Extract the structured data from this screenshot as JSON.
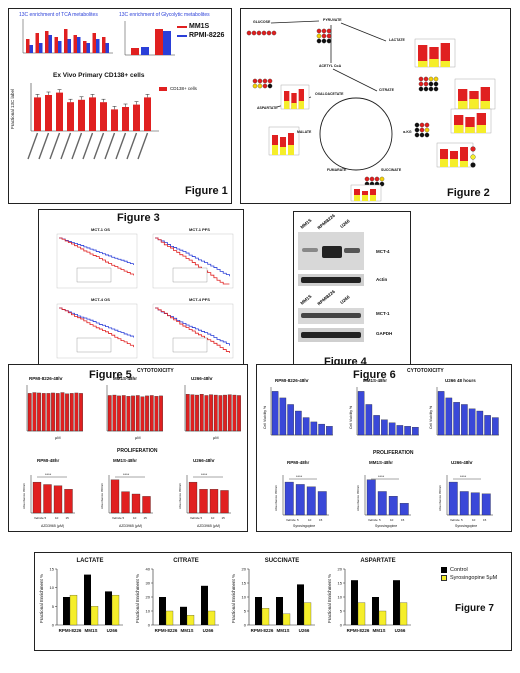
{
  "figure1": {
    "title": "Figure 1",
    "tca_title": "13C enrichment of TCA metabolites",
    "glyco_title": "13C enrichment of Glycolytic metabolites",
    "legend": [
      "MM1S",
      "RPMI-8226"
    ],
    "exvivo_title": "Ex Vivo Primary CD138+ cells",
    "exvivo_legend": "CD138+ cells",
    "ylabel": "Fractional 13C label",
    "colors": {
      "mm1s": "#e02020",
      "rpmi": "#2a3fd8"
    }
  },
  "figure2": {
    "title": "Figure 2",
    "nodes": [
      "GLUCOSE",
      "PYRUVATE",
      "LACTATE",
      "ACETYL CoA",
      "CITRATE",
      "OXALOACETATE",
      "ASPARTATE",
      "MALATE",
      "FUMARATE",
      "SUCCINATE",
      "α-KG"
    ]
  },
  "figure3": {
    "title": "Figure 3",
    "plots": [
      "MCT-1 OS",
      "MCT-1 PFS",
      "MCT-4 OS",
      "MCT-4 PFS"
    ]
  },
  "figure4": {
    "title": "Figure 4",
    "lanes_top": [
      "MM1S",
      "RPMI8226",
      "U266"
    ],
    "lanes_bottom": [
      "MM1S",
      "RPMI8226",
      "U266"
    ],
    "labels": [
      "MCT-4",
      "Actin",
      "MCT-1",
      "GAPDH"
    ]
  },
  "figure5": {
    "title": "Figure 5",
    "cytotoxicity": "CYTOTOXICITY",
    "proliferation": "PROLIFERATION",
    "cyto_titles": [
      "RPMI-8226-48hr",
      "MM1S-48hr",
      "U266-48hr"
    ],
    "prolif_titles": [
      "RPMI-48hr",
      "MM1S-48hr",
      "U266-48hr"
    ],
    "xlabel_cyto": "μM",
    "xlabel_prolif": "AZD3965 (μM)",
    "ylabel_cyto": "Cell Viability %",
    "ylabel_prolif": "Absorbance 450nm",
    "prolif_ticks": [
      "Vehicle",
      "5",
      "10",
      "15"
    ],
    "sig": "****"
  },
  "figure6": {
    "title": "Figure 6",
    "cytotoxicity": "CYTOTOXICITY",
    "proliferation": "PROLIFERATION",
    "cyto_titles": [
      "RPMI-8226-48hr",
      "MM1S-48hr",
      "U266 48 hours"
    ],
    "prolif_titles": [
      "RPMI-48hr",
      "MM1S-48hr",
      "U266-48hr"
    ],
    "xlabel_prolif": "Syrosingopine",
    "ylabel_cyto": "Cell Viability %",
    "ylabel_prolif": "Absorbance 450nm",
    "prolif_ticks": [
      "Vehicle",
      "5",
      "10",
      "15"
    ]
  },
  "figure7": {
    "title": "Figure 7",
    "legend": [
      "Control",
      "Syrosingopine 5μM"
    ],
    "ylabel": "Fractional Enrichment %",
    "categories": [
      "RPMI-8226",
      "MM1S",
      "U266"
    ]
  },
  "chart_data": [
    {
      "type": "bar",
      "title": "LACTATE",
      "categories": [
        "RPMI-8226",
        "MM1S",
        "U266"
      ],
      "ylabel": "Fractional Enrichment %",
      "ylim": [
        0,
        15
      ],
      "series": [
        {
          "name": "Control",
          "values": [
            7.5,
            13.5,
            9
          ]
        },
        {
          "name": "Syrosingopine 5μM",
          "values": [
            8,
            5,
            8
          ]
        }
      ]
    },
    {
      "type": "bar",
      "title": "CITRATE",
      "categories": [
        "RPMI-8226",
        "MM1S",
        "U266"
      ],
      "ylabel": "Fractional Enrichment %",
      "ylim": [
        0,
        40
      ],
      "series": [
        {
          "name": "Control",
          "values": [
            20,
            13,
            28
          ]
        },
        {
          "name": "Syrosingopine 5μM",
          "values": [
            10,
            7,
            10
          ]
        }
      ]
    },
    {
      "type": "bar",
      "title": "SUCCINATE",
      "categories": [
        "RPMI-8226",
        "MM1S",
        "U266"
      ],
      "ylabel": "Fractional Enrichment %",
      "ylim": [
        0,
        20
      ],
      "series": [
        {
          "name": "Control",
          "values": [
            10,
            10,
            14.5
          ]
        },
        {
          "name": "Syrosingopine 5μM",
          "values": [
            6,
            4,
            8
          ]
        }
      ]
    },
    {
      "type": "bar",
      "title": "ASPARTATE",
      "categories": [
        "RPMI-8226",
        "MM1S",
        "U266"
      ],
      "ylabel": "Fractional Enrichment %",
      "ylim": [
        0,
        20
      ],
      "series": [
        {
          "name": "Control",
          "values": [
            16,
            10,
            16
          ]
        },
        {
          "name": "Syrosingopine 5μM",
          "values": [
            8,
            5,
            8
          ]
        }
      ]
    },
    {
      "type": "bar",
      "title": "Ex Vivo Primary CD138+ cells",
      "ylabel": "Fractional 13C label",
      "series": [
        {
          "name": "CD138+ cells",
          "values": [
            14,
            15,
            16,
            12,
            13,
            14,
            12,
            9,
            10,
            11,
            14
          ]
        }
      ]
    },
    {
      "type": "bar",
      "title": "RPMI-8226-48hr",
      "ylabel": "Cell Viability %",
      "series": [
        {
          "values": [
            90,
            92,
            91,
            90,
            90,
            91,
            90,
            92,
            89,
            90,
            91,
            90
          ]
        }
      ]
    },
    {
      "type": "bar",
      "title": "MM1S-48hr",
      "ylabel": "Cell Viability %",
      "series": [
        {
          "values": [
            85,
            86,
            84,
            85,
            83,
            84,
            85,
            82,
            84,
            85,
            83,
            84
          ]
        }
      ]
    },
    {
      "type": "bar",
      "title": "U266-48hr",
      "ylabel": "Cell Viability %",
      "series": [
        {
          "values": [
            88,
            87,
            86,
            88,
            85,
            87,
            86,
            85,
            86,
            87,
            86,
            85
          ]
        }
      ]
    },
    {
      "type": "bar",
      "title": "RPMI-8226-48hr",
      "ylabel": "Cell Viability %",
      "series": [
        {
          "values": [
            100,
            85,
            70,
            55,
            40,
            30,
            25,
            20
          ]
        }
      ]
    },
    {
      "type": "bar",
      "title": "MM1S-48hr",
      "ylabel": "Cell Viability %",
      "series": [
        {
          "values": [
            100,
            70,
            45,
            35,
            28,
            22,
            20,
            18
          ]
        }
      ]
    },
    {
      "type": "bar",
      "title": "U266 48 hours",
      "ylabel": "Cell Viability %",
      "series": [
        {
          "values": [
            100,
            85,
            75,
            70,
            60,
            55,
            45,
            40
          ]
        }
      ]
    }
  ]
}
